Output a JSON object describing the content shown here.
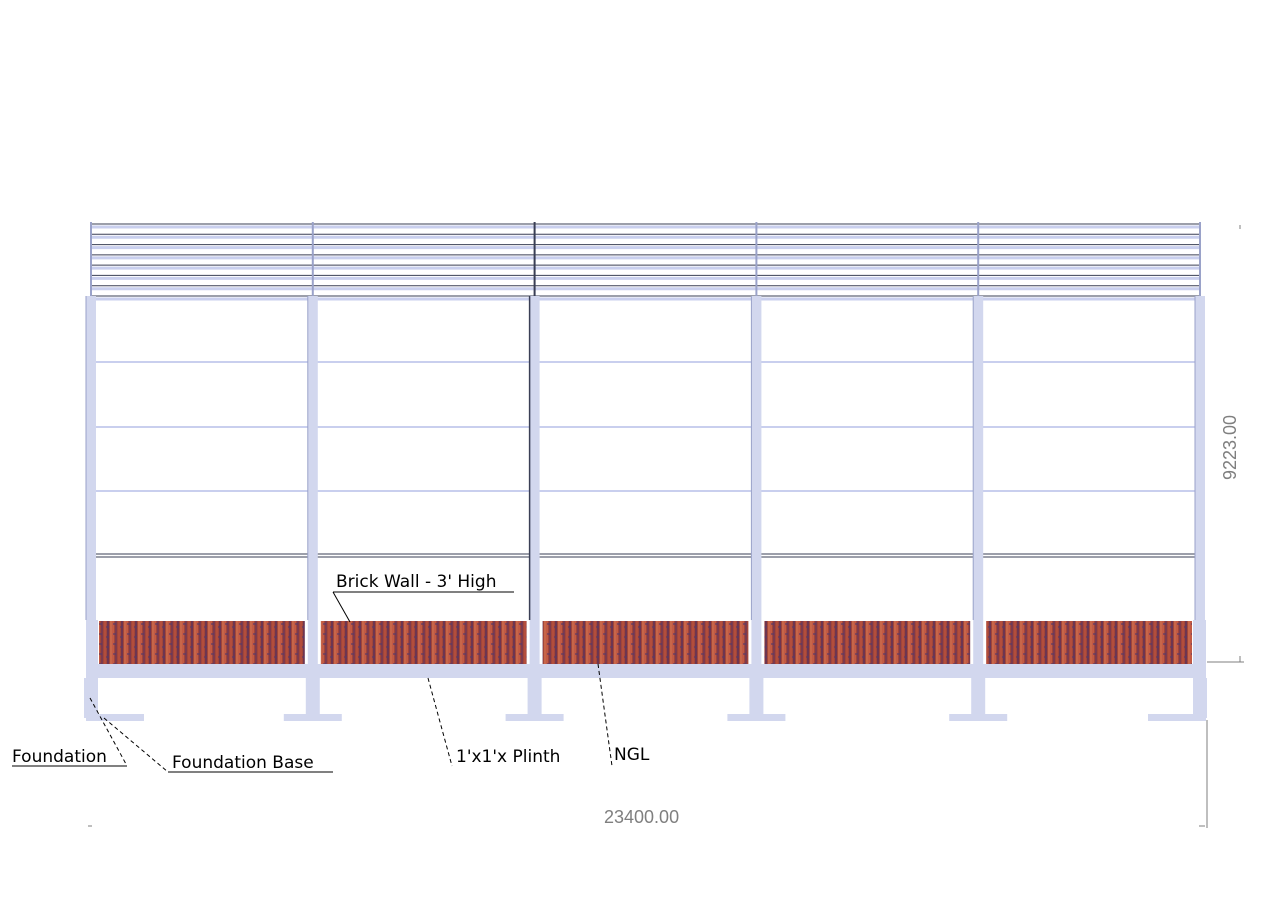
{
  "colors": {
    "steel": "#d2d7ee",
    "steel_edge": "#9aa2c9",
    "roof_line": "#3a3f55",
    "girt": "#c9cfee",
    "brick_base": "#a0463a",
    "dimension": "#7f7f7f",
    "leader": "#000000"
  },
  "labels": {
    "brick_wall": "Brick Wall - 3' High",
    "foundation": "Foundation",
    "foundation_base": "Foundation Base",
    "plinth": "1'x1'x Plinth",
    "ngl": "NGL"
  },
  "dimensions": {
    "height": "9223.00",
    "width": "23400.00"
  },
  "structure": {
    "bays": 5,
    "roof_sheet_lines": 7,
    "wall_girts": 4
  }
}
